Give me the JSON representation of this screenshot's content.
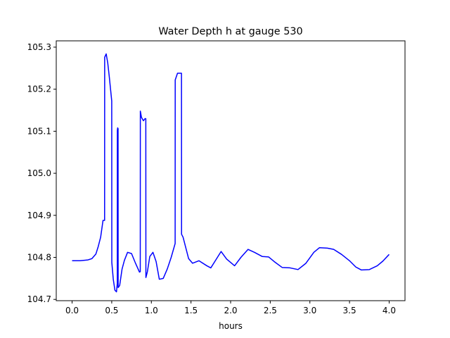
{
  "chart_data": {
    "type": "line",
    "title": "Water Depth h at gauge 530",
    "xlabel": "hours",
    "ylabel": "",
    "xlim": [
      -0.2,
      4.2
    ],
    "ylim": [
      104.697,
      105.315
    ],
    "xticks": [
      0.0,
      0.5,
      1.0,
      1.5,
      2.0,
      2.5,
      3.0,
      3.5,
      4.0
    ],
    "xtick_labels": [
      "0.0",
      "0.5",
      "1.0",
      "1.5",
      "2.0",
      "2.5",
      "3.0",
      "3.5",
      "4.0"
    ],
    "yticks": [
      104.7,
      104.8,
      104.9,
      105.0,
      105.1,
      105.2,
      105.3
    ],
    "ytick_labels": [
      "104.7",
      "104.8",
      "104.9",
      "105.0",
      "105.1",
      "105.2",
      "105.3"
    ],
    "grid": false,
    "legend": "none",
    "series": [
      {
        "color": "#0000ff",
        "x": [
          0.0,
          0.1,
          0.2,
          0.25,
          0.3,
          0.33,
          0.36,
          0.39,
          0.41,
          0.411,
          0.43,
          0.45,
          0.47,
          0.5,
          0.501,
          0.52,
          0.54,
          0.56,
          0.57,
          0.571,
          0.575,
          0.58,
          0.581,
          0.6,
          0.63,
          0.66,
          0.7,
          0.75,
          0.8,
          0.85,
          0.86,
          0.861,
          0.875,
          0.9,
          0.92,
          0.93,
          0.931,
          0.95,
          0.98,
          1.02,
          1.06,
          1.1,
          1.15,
          1.2,
          1.25,
          1.3,
          1.301,
          1.33,
          1.36,
          1.38,
          1.381,
          1.4,
          1.43,
          1.47,
          1.52,
          1.6,
          1.7,
          1.75,
          1.8,
          1.88,
          1.95,
          2.05,
          2.13,
          2.22,
          2.3,
          2.4,
          2.48,
          2.55,
          2.65,
          2.75,
          2.85,
          2.95,
          3.05,
          3.12,
          3.22,
          3.3,
          3.4,
          3.5,
          3.58,
          3.65,
          3.75,
          3.85,
          3.92,
          4.0
        ],
        "y": [
          104.792,
          104.792,
          104.794,
          104.797,
          104.808,
          104.826,
          104.848,
          104.888,
          104.888,
          105.276,
          105.284,
          105.262,
          105.228,
          105.172,
          104.788,
          104.747,
          104.722,
          104.718,
          104.738,
          105.102,
          105.108,
          105.106,
          104.728,
          104.733,
          104.772,
          104.793,
          104.812,
          104.809,
          104.786,
          104.765,
          104.766,
          105.148,
          105.133,
          105.125,
          105.13,
          105.13,
          104.752,
          104.766,
          104.802,
          104.812,
          104.79,
          104.748,
          104.75,
          104.772,
          104.8,
          104.833,
          105.222,
          105.238,
          105.238,
          105.238,
          104.855,
          104.848,
          104.826,
          104.797,
          104.786,
          104.792,
          104.78,
          104.775,
          104.79,
          104.814,
          104.796,
          104.78,
          104.8,
          104.819,
          104.812,
          104.802,
          104.801,
          104.79,
          104.776,
          104.775,
          104.771,
          104.786,
          104.812,
          104.823,
          104.822,
          104.819,
          104.807,
          104.792,
          104.777,
          104.77,
          104.771,
          104.78,
          104.791,
          104.807
        ]
      }
    ]
  }
}
